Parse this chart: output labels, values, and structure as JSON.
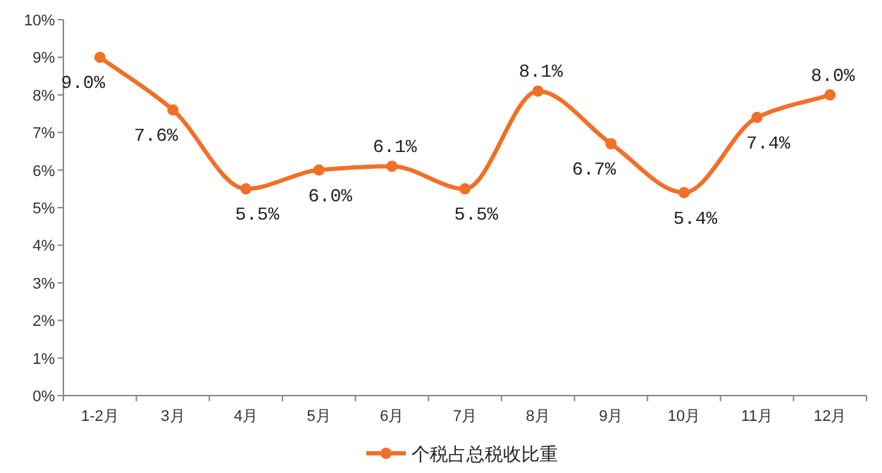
{
  "chart_data": {
    "type": "line",
    "categories": [
      "1-2月",
      "3月",
      "4月",
      "5月",
      "6月",
      "7月",
      "8月",
      "9月",
      "10月",
      "11月",
      "12月"
    ],
    "series": [
      {
        "name": "个税占总税收比重",
        "color": "#f07028",
        "values": [
          9.0,
          7.6,
          5.5,
          6.0,
          6.1,
          5.5,
          8.1,
          6.7,
          5.4,
          7.4,
          8.0
        ],
        "value_labels": [
          "9.0%",
          "7.6%",
          "5.5%",
          "6.0%",
          "6.1%",
          "5.5%",
          "8.1%",
          "6.7%",
          "5.4%",
          "7.4%",
          "8.0%"
        ]
      }
    ],
    "ylim": [
      0,
      10
    ],
    "yticks": [
      {
        "value": 0,
        "label": "0%"
      },
      {
        "value": 1,
        "label": "1%"
      },
      {
        "value": 2,
        "label": "2%"
      },
      {
        "value": 3,
        "label": "3%"
      },
      {
        "value": 4,
        "label": "4%"
      },
      {
        "value": 5,
        "label": "5%"
      },
      {
        "value": 6,
        "label": "6%"
      },
      {
        "value": 7,
        "label": "7%"
      },
      {
        "value": 8,
        "label": "8%"
      },
      {
        "value": 9,
        "label": "9%"
      },
      {
        "value": 10,
        "label": "10%"
      }
    ],
    "marker": "circle",
    "line_style": "solid",
    "legend": "bottom",
    "grid": false
  }
}
